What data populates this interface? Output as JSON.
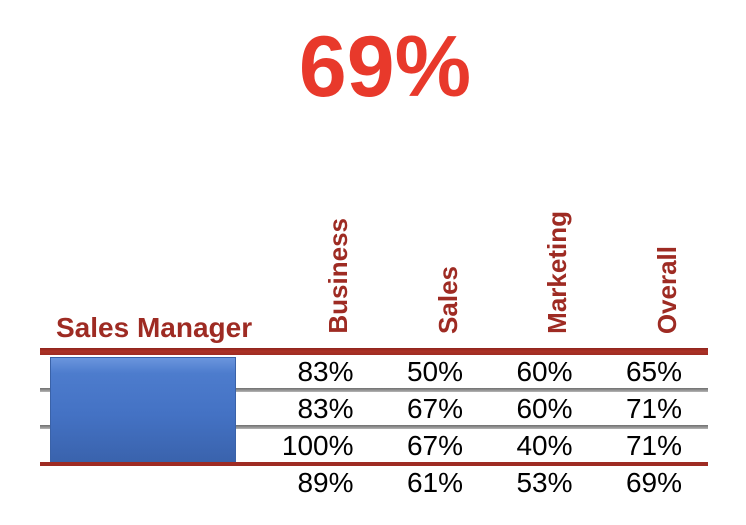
{
  "kpi": {
    "value": "69%",
    "color": "#E8392B"
  },
  "table": {
    "row_header_label": "Sales Manager",
    "columns": [
      "Business",
      "Sales",
      "Marketing",
      "Overall"
    ],
    "rows": [
      [
        "83%",
        "50%",
        "60%",
        "65%"
      ],
      [
        "83%",
        "67%",
        "60%",
        "71%"
      ],
      [
        "100%",
        "67%",
        "40%",
        "71%"
      ]
    ],
    "total_row": [
      "89%",
      "61%",
      "53%",
      "69%"
    ]
  },
  "redaction_box": {
    "covers": "row labels",
    "color": "#4472C4"
  },
  "colors": {
    "kpi_red": "#E8392B",
    "dark_red": "#9E2B23",
    "gray_separator": "#8C8C8C",
    "value_text": "#000000",
    "background": "#FFFFFF"
  },
  "chart_data": {
    "type": "table",
    "title": "69%",
    "row_label_header": "Sales Manager",
    "columns": [
      "Business",
      "Sales",
      "Marketing",
      "Overall"
    ],
    "rows": [
      {
        "values": [
          83,
          50,
          60,
          65
        ]
      },
      {
        "values": [
          83,
          67,
          60,
          71
        ]
      },
      {
        "values": [
          100,
          67,
          40,
          71
        ]
      }
    ],
    "totals": [
      89,
      61,
      53,
      69
    ],
    "units": "%",
    "notes": "Row labels hidden by blue redaction box; totals row unlabeled; overall KPI 69% shown above table"
  }
}
